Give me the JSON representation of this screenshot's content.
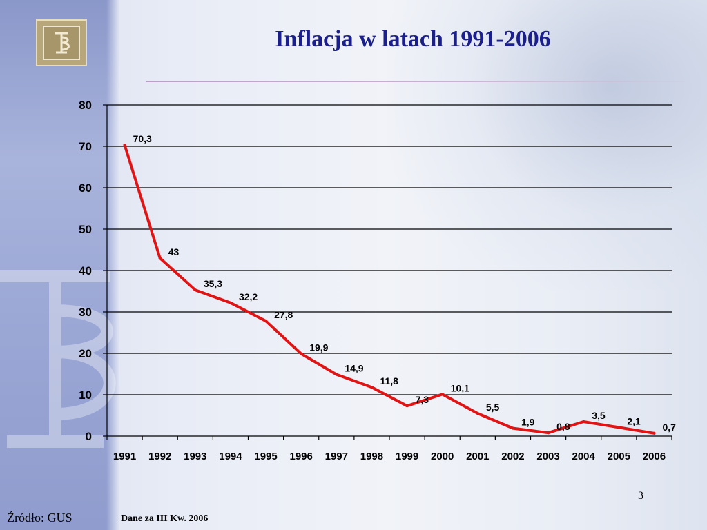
{
  "slide": {
    "title": "Inflacja w latach 1991-2006",
    "page_number": "3",
    "source": "Źródło: GUS",
    "note": "Dane za III Kw. 2006"
  },
  "colors": {
    "title": "#1b1f8c",
    "line": "#e01414",
    "grid": "#000000"
  },
  "chart_data": {
    "type": "line",
    "title": "",
    "xlabel": "",
    "ylabel": "",
    "categories": [
      "1991",
      "1992",
      "1993",
      "1994",
      "1995",
      "1996",
      "1997",
      "1998",
      "1999",
      "2000",
      "2001",
      "2002",
      "2003",
      "2004",
      "2005",
      "2006"
    ],
    "series": [
      {
        "values": [
          70.3,
          43,
          35.3,
          32.2,
          27.8,
          19.9,
          14.9,
          11.8,
          7.3,
          10.1,
          5.5,
          1.9,
          0.8,
          3.5,
          2.1,
          0.7
        ],
        "labels": [
          "70,3",
          "43",
          "35,3",
          "32,2",
          "27,8",
          "19,9",
          "14,9",
          "11,8",
          "7,3",
          "10,1",
          "5,5",
          "1,9",
          "0,8",
          "3,5",
          "2,1",
          "0,7"
        ]
      }
    ],
    "ylim": [
      0,
      80
    ],
    "yticks": [
      "0",
      "10",
      "20",
      "30",
      "40",
      "50",
      "60",
      "70",
      "80"
    ],
    "grid": true,
    "legend": "none"
  }
}
